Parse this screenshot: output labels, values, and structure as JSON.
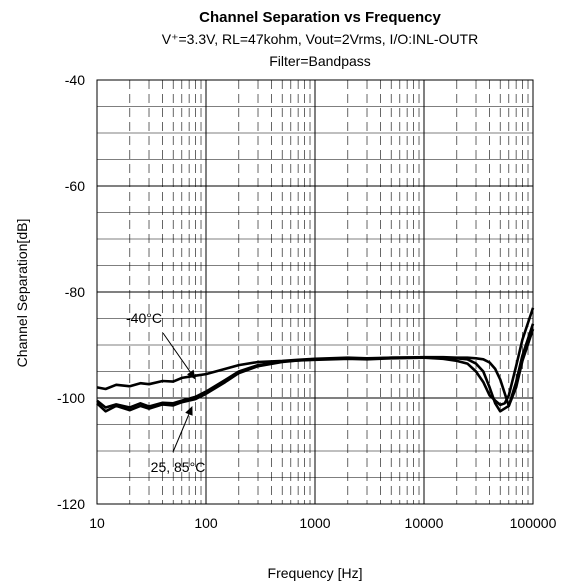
{
  "chart_data": {
    "type": "line",
    "title": "Channel Separation vs Frequency",
    "subtitle_lines": [
      "V⁺=3.3V, RL=47kohm, Vout=2Vrms, I/O:INL-OUTR",
      "Filter=Bandpass"
    ],
    "xlabel": "Frequency [Hz]",
    "ylabel": "Channel Separation[dB]",
    "xscale": "log",
    "xlim": [
      10,
      100000
    ],
    "ylim": [
      -120,
      -40
    ],
    "x_ticks": [
      10,
      100,
      1000,
      10000,
      100000
    ],
    "x_tick_labels": [
      "10",
      "100",
      "1000",
      "10000",
      "100000"
    ],
    "y_ticks": [
      -120,
      -100,
      -80,
      -60,
      -40
    ],
    "y_tick_labels": [
      "-120",
      "-100",
      "-80",
      "-60",
      "-40"
    ],
    "grid": true,
    "line_color": "#000000",
    "annotations": [
      {
        "text": "-40°C",
        "point_x": 80,
        "point_y": -96.5
      },
      {
        "text": "25, 85°C",
        "point_x": 75,
        "point_y": -101.5
      }
    ],
    "series": [
      {
        "x": [
          10,
          12,
          15,
          20,
          25,
          30,
          40,
          50,
          60,
          80,
          100,
          150,
          200,
          300,
          500,
          700,
          1000,
          2000,
          3000,
          5000,
          10000,
          15000,
          20000,
          25000,
          30000,
          35000,
          40000,
          45000,
          50000,
          55000,
          60000,
          70000,
          80000,
          100000
        ],
        "y": [
          -98,
          -98.3,
          -97.5,
          -97.8,
          -97.2,
          -97.4,
          -96.8,
          -96.9,
          -96.2,
          -95.8,
          -95.5,
          -94.5,
          -93.8,
          -93.2,
          -93,
          -92.8,
          -92.6,
          -92.4,
          -92.5,
          -92.4,
          -92.4,
          -92.6,
          -93,
          -93.5,
          -95,
          -97,
          -99.5,
          -100.5,
          -101.3,
          -101,
          -99.5,
          -94,
          -89,
          -83
        ]
      },
      {
        "x": [
          10,
          12,
          15,
          20,
          25,
          30,
          40,
          50,
          60,
          80,
          100,
          150,
          200,
          300,
          500,
          700,
          1000,
          2000,
          3000,
          5000,
          10000,
          15000,
          20000,
          25000,
          30000,
          35000,
          40000,
          45000,
          50000,
          60000,
          70000,
          80000,
          100000
        ],
        "y": [
          -101,
          -102.5,
          -101.5,
          -102.3,
          -101.5,
          -102,
          -101.2,
          -101.4,
          -100.8,
          -100.2,
          -99.2,
          -97,
          -95.3,
          -94,
          -93.2,
          -92.9,
          -92.8,
          -92.6,
          -92.7,
          -92.5,
          -92.4,
          -92.4,
          -92.5,
          -92.7,
          -93.5,
          -95,
          -98,
          -101,
          -102.5,
          -101.5,
          -97,
          -92,
          -86
        ]
      },
      {
        "x": [
          10,
          12,
          15,
          20,
          25,
          30,
          40,
          50,
          60,
          80,
          100,
          150,
          200,
          300,
          500,
          700,
          1000,
          2000,
          3000,
          5000,
          10000,
          15000,
          20000,
          25000,
          30000,
          35000,
          40000,
          45000,
          50000,
          60000,
          70000,
          80000,
          100000
        ],
        "y": [
          -100.5,
          -101.8,
          -101.2,
          -101.8,
          -101,
          -101.6,
          -100.9,
          -101,
          -100.5,
          -99.8,
          -98.8,
          -96.6,
          -95,
          -93.8,
          -93.1,
          -92.9,
          -92.7,
          -92.5,
          -92.6,
          -92.4,
          -92.3,
          -92.3,
          -92.4,
          -92.4,
          -92.5,
          -92.7,
          -93.3,
          -94.5,
          -96.5,
          -101.5,
          -98,
          -93,
          -87
        ]
      }
    ]
  }
}
